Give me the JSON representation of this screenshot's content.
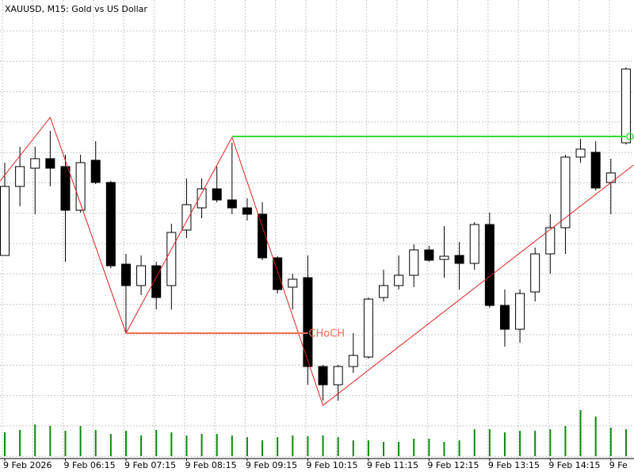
{
  "chart_data": {
    "type": "candlestick",
    "title": "XAUUSD, M15:  Gold vs US Dollar",
    "categories": [
      "9 Feb 2026",
      null,
      null,
      null,
      "9 Feb 06:15",
      null,
      null,
      null,
      "9 Feb 07:15",
      null,
      null,
      null,
      "9 Feb 08:15",
      null,
      null,
      null,
      "9 Feb 09:15",
      null,
      null,
      null,
      "9 Feb 10:15",
      null,
      null,
      null,
      "9 Feb 11:15",
      null,
      null,
      null,
      "9 Feb 12:15",
      null,
      null,
      null,
      "9 Feb 13:15",
      null,
      null,
      null,
      "9 Feb 14:15",
      null,
      null,
      null,
      "9 Fe",
      null
    ],
    "open": [
      278,
      365,
      388,
      400,
      390,
      335,
      398,
      370,
      267,
      240,
      265,
      240,
      310,
      338,
      362,
      348,
      338,
      330,
      275,
      238,
      250,
      138,
      115,
      138,
      150,
      225,
      240,
      253,
      285,
      273,
      278,
      268,
      317,
      215,
      185,
      232,
      280,
      313,
      402,
      408,
      370,
      420
    ],
    "high": [
      395,
      415,
      415,
      435,
      405,
      405,
      422,
      372,
      280,
      278,
      270,
      318,
      375,
      375,
      390,
      420,
      350,
      345,
      277,
      255,
      278,
      140,
      140,
      180,
      225,
      260,
      278,
      292,
      290,
      315,
      295,
      320,
      332,
      235,
      235,
      288,
      330,
      405,
      425,
      422,
      400,
      515
    ],
    "low": [
      278,
      340,
      330,
      365,
      270,
      332,
      368,
      262,
      180,
      228,
      210,
      210,
      300,
      325,
      345,
      330,
      322,
      272,
      230,
      210,
      115,
      95,
      95,
      130,
      148,
      220,
      235,
      238,
      270,
      250,
      235,
      260,
      212,
      163,
      168,
      220,
      255,
      280,
      395,
      360,
      330,
      418
    ],
    "close": [
      365,
      390,
      400,
      388,
      335,
      395,
      370,
      265,
      240,
      265,
      225,
      307,
      342,
      362,
      348,
      338,
      330,
      275,
      235,
      248,
      138,
      115,
      138,
      152,
      223,
      240,
      253,
      285,
      272,
      277,
      268,
      317,
      215,
      185,
      230,
      280,
      313,
      402,
      412,
      363,
      382,
      513
    ],
    "up_color": "#ffffff",
    "down_color": "#000000",
    "wick_color": "#000000",
    "ylim": [
      0,
      600
    ],
    "volume": {
      "color": "#0a8a0a",
      "values": [
        30,
        33,
        40,
        38,
        32,
        38,
        33,
        28,
        32,
        26,
        33,
        30,
        26,
        28,
        28,
        26,
        24,
        20,
        24,
        26,
        25,
        26,
        24,
        20,
        20,
        18,
        18,
        22,
        22,
        18,
        20,
        34,
        34,
        30,
        32,
        32,
        34,
        38,
        58,
        50,
        36,
        34
      ],
      "ylim": [
        0,
        60
      ]
    },
    "zigzag": {
      "color": "#e02020",
      "x": [
        -0.3,
        3,
        8,
        15,
        21,
        41.5
      ],
      "values": [
        372,
        452,
        180,
        427,
        89,
        392
      ]
    },
    "choch": {
      "label": "CHoCH",
      "color": "#f07050",
      "x": [
        8,
        20
      ],
      "value": 180
    },
    "level": {
      "color": "#33dd33",
      "x": [
        15,
        41
      ],
      "value": 428
    },
    "grid": true
  }
}
